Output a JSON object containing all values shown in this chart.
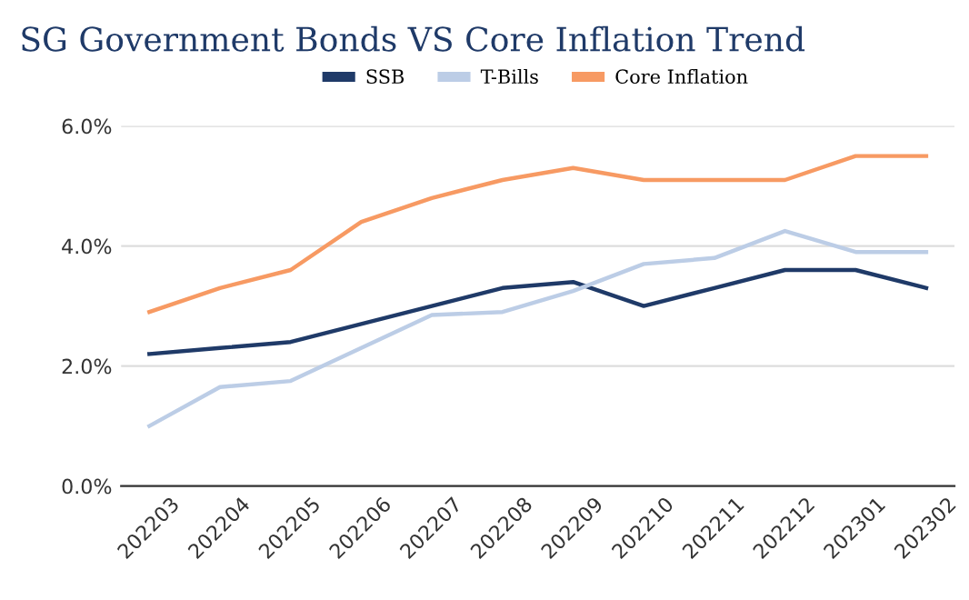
{
  "chart_data": {
    "type": "line",
    "title": "SG Government Bonds VS Core Inflation Trend",
    "categories": [
      "202203",
      "202204",
      "202205",
      "202206",
      "202207",
      "202208",
      "202209",
      "202210",
      "202211",
      "202212",
      "202301",
      "202302"
    ],
    "series": [
      {
        "name": "SSB",
        "color": "#1f3a68",
        "values": [
          2.2,
          2.3,
          2.4,
          2.7,
          3.0,
          3.3,
          3.4,
          3.0,
          3.3,
          3.6,
          3.6,
          3.3
        ]
      },
      {
        "name": "T-Bills",
        "color": "#bccde6",
        "values": [
          1.0,
          1.65,
          1.75,
          2.3,
          2.85,
          2.9,
          3.25,
          3.7,
          3.8,
          4.25,
          3.9,
          3.9
        ]
      },
      {
        "name": "Core Inflation",
        "color": "#f79a63",
        "values": [
          2.9,
          3.3,
          3.6,
          4.4,
          4.8,
          5.1,
          5.3,
          5.1,
          5.1,
          5.1,
          5.5,
          5.5
        ]
      }
    ],
    "ylim": [
      0,
      6
    ],
    "yticks": [
      {
        "value": 0,
        "label": "0.0%"
      },
      {
        "value": 2,
        "label": "2.0%"
      },
      {
        "value": 4,
        "label": "4.0%"
      },
      {
        "value": 6,
        "label": "6.0%"
      }
    ],
    "grid": "y",
    "legend": "top",
    "marker": "none",
    "line_style": "solid"
  }
}
